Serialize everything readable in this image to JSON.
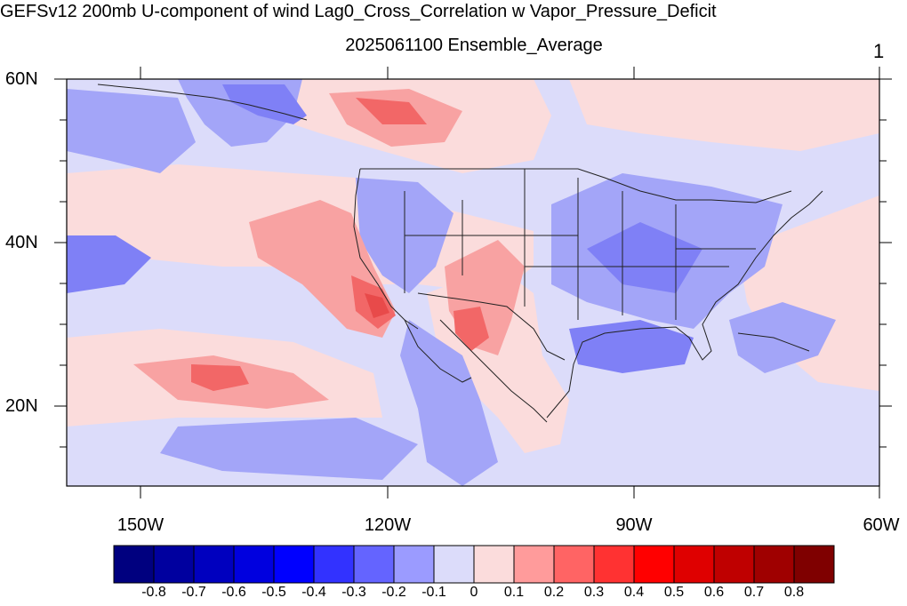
{
  "title": "GEFSv12 200mb U-component of wind Lag0_Cross_Correlation w Vapor_Pressure_Deficit",
  "subtitle": "2025061100 Ensemble_Average",
  "panel_number": "1",
  "map": {
    "lat_labels": [
      "60N",
      "40N",
      "20N"
    ],
    "lon_labels": [
      "150W",
      "120W",
      "90W",
      "60W"
    ],
    "colors": {
      "strong_neg": "#7f80f6",
      "neg": "#a3a5f8",
      "weak_neg": "#dcdcfa",
      "weak_pos": "#fbdcdc",
      "pos": "#f8a2a2",
      "strong_pos": "#f26767",
      "peak_pos": "#e84a4a"
    }
  },
  "colorbar": {
    "colors": [
      "#00007f",
      "#00009f",
      "#0000bf",
      "#0000df",
      "#0000ff",
      "#3232ff",
      "#6464ff",
      "#9b9bff",
      "#dcdcfa",
      "#fbdcdc",
      "#ff9b9b",
      "#ff6464",
      "#ff3232",
      "#ff0000",
      "#df0000",
      "#bf0000",
      "#9f0000",
      "#7f0000"
    ],
    "labels": [
      "-0.8",
      "-0.7",
      "-0.6",
      "-0.5",
      "-0.4",
      "-0.3",
      "-0.2",
      "-0.1",
      "0",
      "0.1",
      "0.2",
      "0.3",
      "0.4",
      "0.5",
      "0.6",
      "0.7",
      "0.8"
    ]
  }
}
